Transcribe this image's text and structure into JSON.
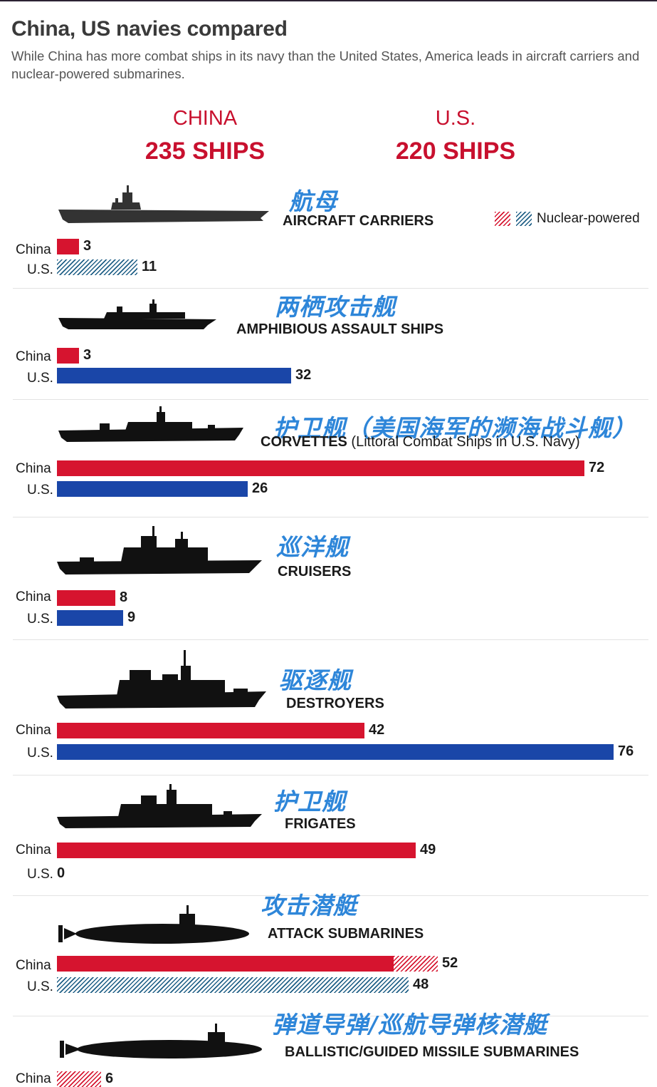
{
  "header": {
    "title": "China, US navies compared",
    "subtitle": "While China has more combat ships in its navy than the United States, America leads in aircraft carriers and nuclear-powered submarines."
  },
  "totals": {
    "china": {
      "name": "CHINA",
      "count": "235 SHIPS"
    },
    "us": {
      "name": "U.S.",
      "count": "220 SHIPS"
    }
  },
  "legend": {
    "label": "Nuclear-powered"
  },
  "labels": {
    "china": "China",
    "us": "U.S."
  },
  "colors": {
    "china": "#d6142f",
    "us": "#1a46a8",
    "nuclear_china": "#d6142f",
    "nuclear_us": "#1f5f86",
    "annotation": "#2e86d9"
  },
  "chart_data": {
    "type": "bar",
    "orientation": "horizontal",
    "title": "China, US navies compared",
    "scale_max": 76,
    "series": [
      {
        "name": "China",
        "values": [
          3,
          3,
          72,
          8,
          42,
          49,
          52,
          6
        ]
      },
      {
        "name": "U.S.",
        "values": [
          11,
          32,
          26,
          9,
          76,
          0,
          48,
          null
        ]
      }
    ],
    "categories": [
      {
        "key": "aircraft-carriers",
        "zh": "航母",
        "en": "AIRCRAFT CARRIERS",
        "note": "",
        "china": 3,
        "us": 11,
        "china_nuclear": 0,
        "us_nuclear": 11,
        "icon": "aircraft-carrier-icon"
      },
      {
        "key": "amphibious-assault-ships",
        "zh": "两栖攻击舰",
        "en": "AMPHIBIOUS ASSAULT SHIPS",
        "note": "",
        "china": 3,
        "us": 32,
        "china_nuclear": 0,
        "us_nuclear": 0,
        "icon": "amphibious-ship-icon"
      },
      {
        "key": "corvettes",
        "zh": "护卫舰（美国海军的濒海战斗舰）",
        "en": "CORVETTES",
        "note": "(Littoral Combat Ships in U.S. Navy)",
        "china": 72,
        "us": 26,
        "china_nuclear": 0,
        "us_nuclear": 0,
        "icon": "corvette-icon"
      },
      {
        "key": "cruisers",
        "zh": "巡洋舰",
        "en": "CRUISERS",
        "note": "",
        "china": 8,
        "us": 9,
        "china_nuclear": 0,
        "us_nuclear": 0,
        "icon": "cruiser-icon"
      },
      {
        "key": "destroyers",
        "zh": "驱逐舰",
        "en": "DESTROYERS",
        "note": "",
        "china": 42,
        "us": 76,
        "china_nuclear": 0,
        "us_nuclear": 0,
        "icon": "destroyer-icon"
      },
      {
        "key": "frigates",
        "zh": "护卫舰",
        "en": "FRIGATES",
        "note": "",
        "china": 49,
        "us": 0,
        "china_nuclear": 0,
        "us_nuclear": 0,
        "icon": "frigate-icon"
      },
      {
        "key": "attack-submarines",
        "zh": "攻击潜艇",
        "en": "ATTACK SUBMARINES",
        "note": "",
        "china": 52,
        "us": 48,
        "china_nuclear": 6,
        "us_nuclear": 48,
        "icon": "submarine-icon"
      },
      {
        "key": "missile-submarines",
        "zh": "弹道导弹/巡航导弹核潜艇",
        "en": "BALLISTIC/GUIDED MISSILE SUBMARINES",
        "note": "",
        "china": 6,
        "us": null,
        "china_nuclear": 6,
        "us_nuclear": null,
        "icon": "missile-submarine-icon"
      }
    ]
  }
}
